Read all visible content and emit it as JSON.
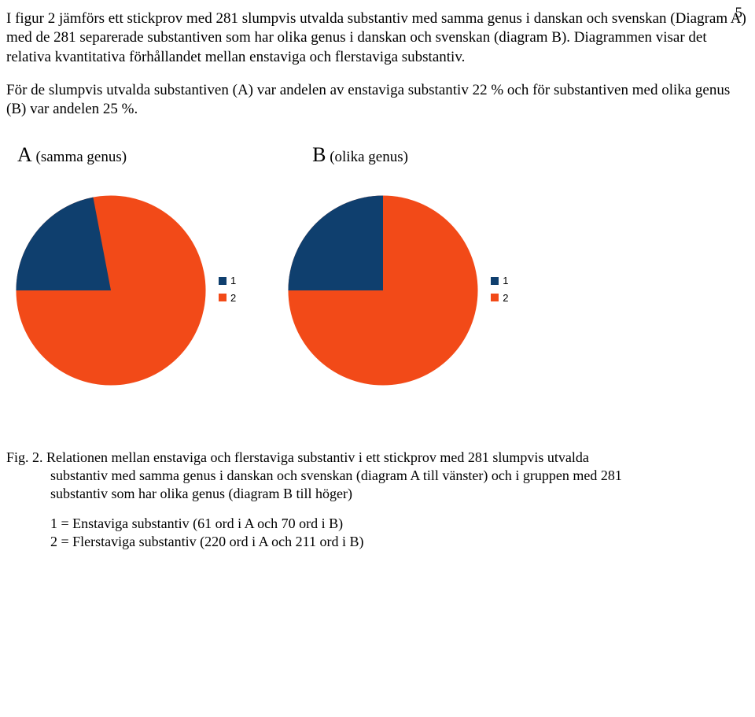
{
  "page_number": "5",
  "paragraph_1": "I figur 2 jämförs ett stickprov med 281 slumpvis utvalda substantiv med samma genus i danskan och svenskan (Diagram A) med de 281 separerade substantiven som har olika genus i danskan och svenskan (diagram B). Diagrammen visar det relativa kvantitativa förhållandet mellan enstaviga och flerstaviga substantiv.",
  "paragraph_2": "För de slumpvis utvalda substantiven (A) var andelen av enstaviga substantiv 22 % och för substantiven med olika genus (B) var andelen 25 %.",
  "chart_A": {
    "type": "pie",
    "title_letter": "A",
    "title_rest": " (samma genus)",
    "slice1_percent": 22,
    "slice2_percent": 78,
    "slice1_color": "#0f3f6e",
    "slice2_color": "#f24a18",
    "legend": [
      {
        "label": "1",
        "color": "#0f3f6e"
      },
      {
        "label": "2",
        "color": "#f24a18"
      }
    ]
  },
  "chart_B": {
    "type": "pie",
    "title_letter": "B",
    "title_rest": " (olika genus)",
    "slice1_percent": 25,
    "slice2_percent": 75,
    "slice1_color": "#0f3f6e",
    "slice2_color": "#f24a18",
    "legend": [
      {
        "label": "1",
        "color": "#0f3f6e"
      },
      {
        "label": "2",
        "color": "#f24a18"
      }
    ]
  },
  "caption_lead": "Fig. 2.",
  "caption_rest_line1": " Relationen mellan enstaviga och flerstaviga substantiv i ett stickprov med 281 slumpvis utvalda",
  "caption_line2": "substantiv med samma genus i danskan och svenskan (diagram A till vänster) och i gruppen med 281",
  "caption_line3": "substantiv som har olika genus (diagram B till höger)",
  "footnote_1": "1 = Enstaviga substantiv (61 ord i A och 70 ord i B)",
  "footnote_2": "2 = Flerstaviga substantiv (220 ord i A och 211 ord i B)"
}
